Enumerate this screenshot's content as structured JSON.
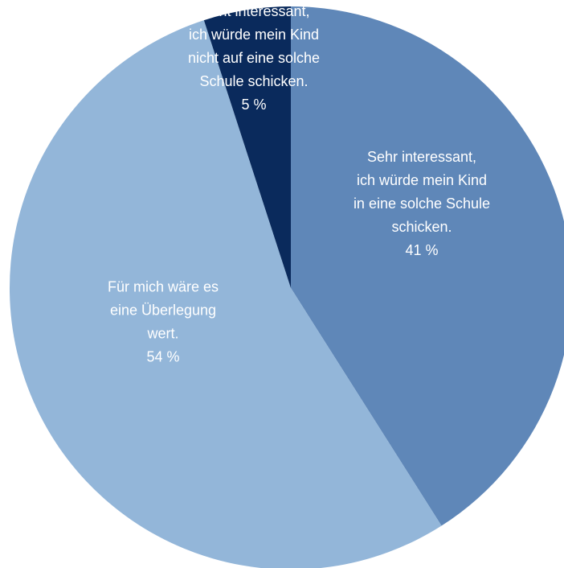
{
  "chart_data": {
    "type": "pie",
    "slices": [
      {
        "label_lines": [
          "Sehr interessant,",
          "ich würde mein Kind",
          "in eine solche Schule",
          "schicken."
        ],
        "value": 41,
        "value_label": "41 %",
        "color": "#5f87b8"
      },
      {
        "label_lines": [
          "Für mich wäre es",
          "eine Überlegung",
          "wert."
        ],
        "value": 54,
        "value_label": "54 %",
        "color": "#93b6d9"
      },
      {
        "label_lines": [
          "Nicht interessant,",
          "ich würde mein Kind",
          "nicht auf eine solche",
          "Schule schicken."
        ],
        "value": 5,
        "value_label": "5 %",
        "color": "#0a2a5c"
      }
    ],
    "start_angle": "top (12 o'clock)",
    "direction": "clockwise",
    "legend": "none (labels inside slices)"
  }
}
